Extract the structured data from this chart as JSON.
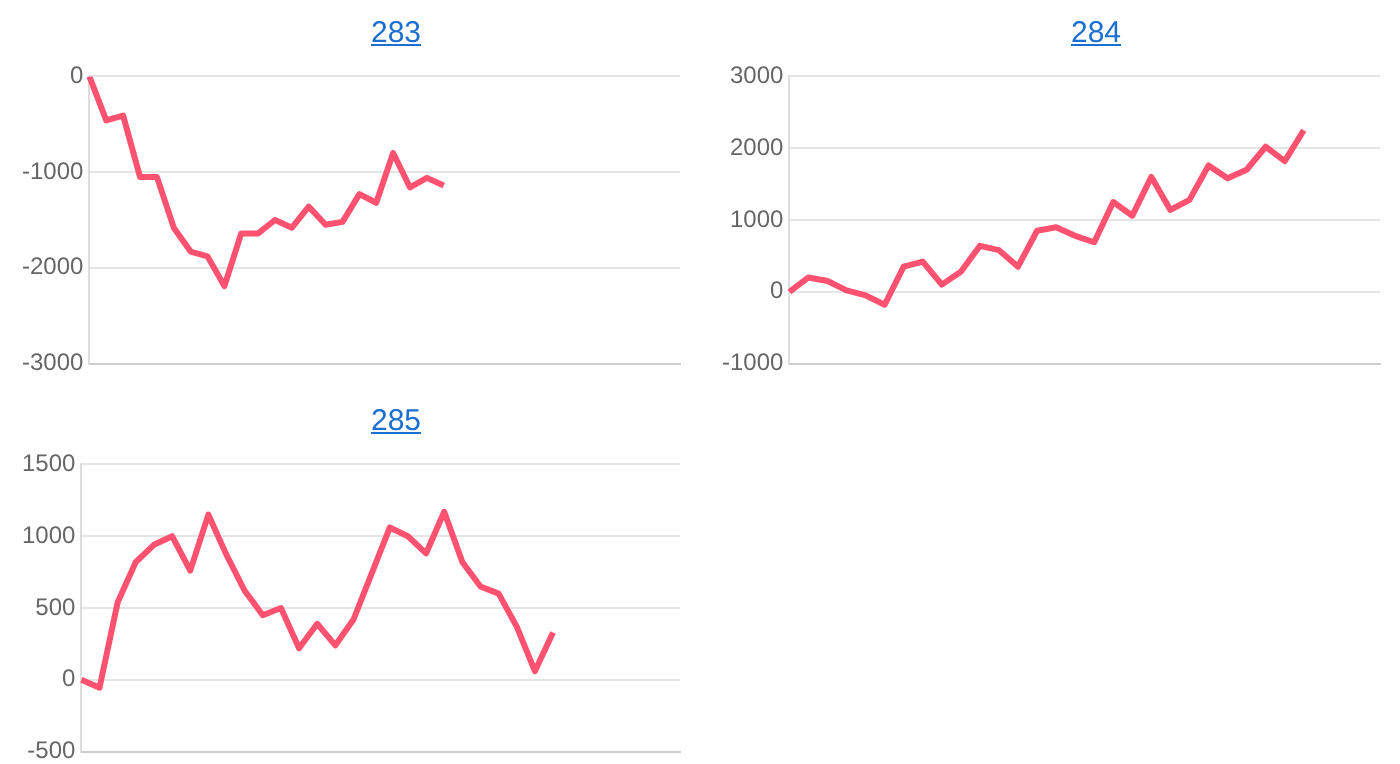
{
  "chart_data": [
    {
      "type": "line",
      "title": "283",
      "categories": [
        null,
        null,
        null,
        null,
        null,
        null,
        null,
        null,
        null,
        null,
        null,
        null,
        null,
        null,
        null,
        null,
        null,
        null,
        null,
        null,
        null,
        null,
        null,
        null,
        null,
        null,
        null,
        null,
        null,
        null,
        null,
        null,
        null,
        null,
        null,
        null
      ],
      "series": [
        {
          "color": "#ff5270",
          "values": [
            0,
            -460,
            -410,
            -1050,
            -1050,
            -1580,
            -1830,
            -1880,
            -2190,
            -1640,
            -1640,
            -1500,
            -1580,
            -1360,
            -1550,
            -1520,
            -1230,
            -1320,
            -800,
            -1160,
            -1060,
            -1140,
            null,
            null,
            null,
            null,
            null,
            null,
            null,
            null,
            null,
            null,
            null,
            null,
            null,
            null
          ]
        }
      ],
      "ylim": [
        -3000,
        0
      ],
      "yticks": [
        -3000,
        -2000,
        -1000,
        0
      ],
      "grid": "y",
      "tick_labels": "y",
      "marker": "none",
      "line_style": "solid"
    },
    {
      "type": "line",
      "title": "284",
      "categories": [
        null,
        null,
        null,
        null,
        null,
        null,
        null,
        null,
        null,
        null,
        null,
        null,
        null,
        null,
        null,
        null,
        null,
        null,
        null,
        null,
        null,
        null,
        null,
        null,
        null,
        null,
        null,
        null,
        null,
        null,
        null,
        null
      ],
      "series": [
        {
          "color": "#ff5270",
          "values": [
            0,
            200,
            150,
            20,
            -50,
            -180,
            350,
            420,
            100,
            280,
            640,
            580,
            350,
            850,
            900,
            780,
            690,
            1250,
            1060,
            1600,
            1140,
            1280,
            1760,
            1580,
            1700,
            2020,
            1820,
            2250,
            null,
            null,
            null,
            null
          ]
        }
      ],
      "ylim": [
        -1000,
        3000
      ],
      "yticks": [
        -1000,
        0,
        1000,
        2000,
        3000
      ],
      "grid": "y",
      "tick_labels": "y",
      "marker": "none",
      "line_style": "solid"
    },
    {
      "type": "line",
      "title": "285",
      "categories": [
        null,
        null,
        null,
        null,
        null,
        null,
        null,
        null,
        null,
        null,
        null,
        null,
        null,
        null,
        null,
        null,
        null,
        null,
        null,
        null,
        null,
        null,
        null,
        null,
        null,
        null,
        null,
        null,
        null,
        null,
        null,
        null,
        null,
        null
      ],
      "series": [
        {
          "color": "#ff5270",
          "values": [
            0,
            -55,
            540,
            820,
            940,
            1000,
            760,
            1150,
            870,
            620,
            450,
            500,
            220,
            390,
            240,
            420,
            740,
            1060,
            1000,
            880,
            1170,
            820,
            650,
            600,
            370,
            60,
            330,
            null,
            null,
            null,
            null,
            null,
            null,
            null
          ]
        }
      ],
      "ylim": [
        -500,
        1500
      ],
      "yticks": [
        -500,
        0,
        500,
        1000,
        1500
      ],
      "grid": "y",
      "tick_labels": "y",
      "marker": "none",
      "line_style": "solid"
    }
  ]
}
